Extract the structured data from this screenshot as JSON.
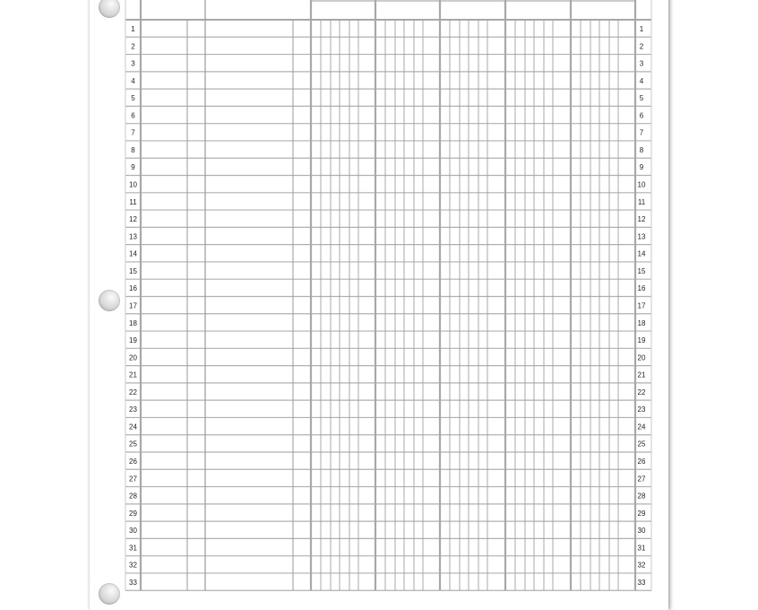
{
  "ledger": {
    "rows": [
      "1",
      "2",
      "3",
      "4",
      "5",
      "6",
      "7",
      "8",
      "9",
      "10",
      "11",
      "12",
      "13",
      "14",
      "15",
      "16",
      "17",
      "18",
      "19",
      "20",
      "21",
      "22",
      "23",
      "24",
      "25",
      "26",
      "27",
      "28",
      "29",
      "30",
      "31",
      "32",
      "33"
    ],
    "money_columns": 5,
    "line_color": "#9a9a9a",
    "thick_line_color": "#a8a8a8"
  }
}
